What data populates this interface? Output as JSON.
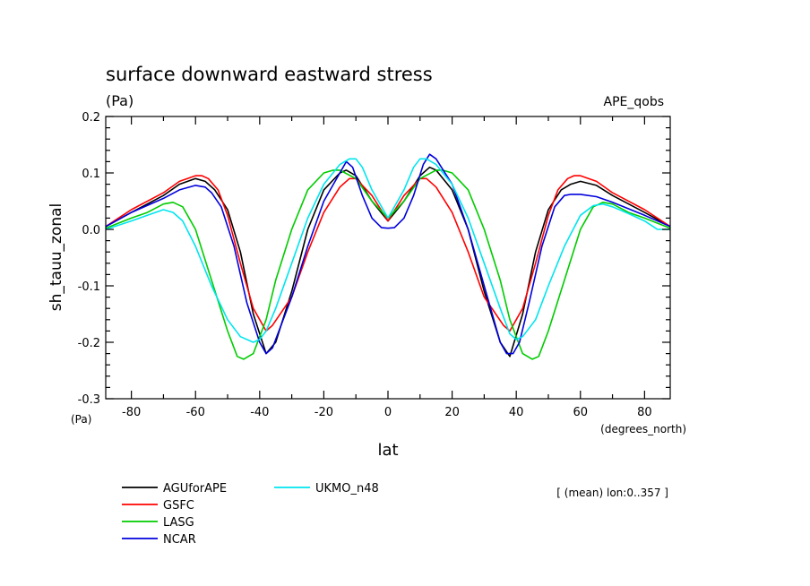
{
  "chart_data": {
    "type": "line",
    "title": "surface downward eastward stress",
    "units_label": "(Pa)",
    "experiment_label": "APE_qobs",
    "xlabel": "lat",
    "ylabel": "sh_tauu_zonal",
    "x_units_label": "(degrees_north)",
    "y_units_label": "(Pa)",
    "annotation": "[ (mean) lon:0..357 ]",
    "xlim": [
      -88,
      88
    ],
    "ylim": [
      -0.3,
      0.2
    ],
    "grid": false,
    "legend_position": "bottom-left",
    "x_ticks": [
      -80,
      -60,
      -40,
      -20,
      0,
      20,
      40,
      60,
      80
    ],
    "y_ticks": [
      -0.3,
      -0.2,
      -0.1,
      0.0,
      0.1,
      0.2
    ],
    "x_tick_labels": [
      "-80",
      "-60",
      "-40",
      "-20",
      "0",
      "20",
      "40",
      "60",
      "80"
    ],
    "y_tick_labels": [
      "-0.3",
      "-0.2",
      "-0.1",
      "0.0",
      "0.1",
      "0.2"
    ],
    "series": [
      {
        "name": "AGUforAPE",
        "color": "#000000",
        "x": [
          -88,
          -80,
          -70,
          -65,
          -60,
          -57,
          -54,
          -50,
          -46,
          -42,
          -38,
          -35,
          -30,
          -25,
          -20,
          -15,
          -13,
          -10,
          -5,
          0,
          5,
          10,
          13,
          15,
          20,
          25,
          30,
          35,
          38,
          42,
          46,
          50,
          54,
          57,
          60,
          65,
          70,
          80,
          88
        ],
        "y": [
          0.005,
          0.03,
          0.06,
          0.08,
          0.09,
          0.085,
          0.07,
          0.035,
          -0.04,
          -0.15,
          -0.22,
          -0.2,
          -0.11,
          0.0,
          0.07,
          0.1,
          0.105,
          0.095,
          0.05,
          0.015,
          0.05,
          0.095,
          0.11,
          0.105,
          0.07,
          0.0,
          -0.11,
          -0.2,
          -0.225,
          -0.15,
          -0.04,
          0.035,
          0.07,
          0.08,
          0.085,
          0.078,
          0.06,
          0.03,
          0.005
        ]
      },
      {
        "name": "GSFC",
        "color": "#ff0000",
        "x": [
          -88,
          -80,
          -70,
          -65,
          -60,
          -58,
          -56,
          -53,
          -50,
          -46,
          -42,
          -38,
          -36,
          -30,
          -25,
          -20,
          -15,
          -12,
          -10,
          -5,
          0,
          5,
          10,
          12,
          15,
          20,
          25,
          30,
          36,
          38,
          42,
          46,
          50,
          53,
          56,
          58,
          60,
          65,
          70,
          80,
          88
        ],
        "y": [
          0.005,
          0.035,
          0.065,
          0.085,
          0.095,
          0.095,
          0.09,
          0.07,
          0.025,
          -0.06,
          -0.14,
          -0.18,
          -0.17,
          -0.12,
          -0.04,
          0.03,
          0.075,
          0.09,
          0.09,
          0.06,
          0.015,
          0.06,
          0.09,
          0.09,
          0.075,
          0.03,
          -0.04,
          -0.12,
          -0.17,
          -0.18,
          -0.14,
          -0.06,
          0.025,
          0.07,
          0.09,
          0.095,
          0.095,
          0.085,
          0.065,
          0.035,
          0.005
        ]
      },
      {
        "name": "LASG",
        "color": "#00cc00",
        "x": [
          -88,
          -80,
          -75,
          -70,
          -67,
          -64,
          -60,
          -55,
          -50,
          -47,
          -45,
          -42,
          -38,
          -35,
          -30,
          -25,
          -20,
          -17,
          -15,
          -10,
          -5,
          0,
          5,
          10,
          15,
          17,
          20,
          25,
          30,
          35,
          38,
          42,
          45,
          47,
          50,
          55,
          60,
          64,
          67,
          70,
          75,
          80,
          88
        ],
        "y": [
          0.002,
          0.02,
          0.03,
          0.045,
          0.048,
          0.04,
          0.0,
          -0.09,
          -0.18,
          -0.225,
          -0.23,
          -0.22,
          -0.16,
          -0.09,
          0.0,
          0.07,
          0.1,
          0.105,
          0.105,
          0.09,
          0.05,
          0.02,
          0.05,
          0.09,
          0.105,
          0.105,
          0.1,
          0.07,
          0.0,
          -0.09,
          -0.16,
          -0.22,
          -0.23,
          -0.225,
          -0.18,
          -0.09,
          0.0,
          0.04,
          0.048,
          0.045,
          0.03,
          0.02,
          0.002
        ]
      },
      {
        "name": "NCAR",
        "color": "#0000dd",
        "x": [
          -88,
          -80,
          -70,
          -65,
          -60,
          -57,
          -55,
          -52,
          -48,
          -44,
          -40,
          -38,
          -36,
          -30,
          -25,
          -20,
          -15,
          -13,
          -11,
          -8,
          -5,
          -2,
          0,
          2,
          5,
          8,
          11,
          13,
          15,
          20,
          25,
          30,
          35,
          37,
          39,
          41,
          44,
          48,
          52,
          55,
          57,
          60,
          65,
          70,
          80,
          88
        ],
        "y": [
          0.005,
          0.03,
          0.055,
          0.07,
          0.078,
          0.075,
          0.065,
          0.04,
          -0.03,
          -0.13,
          -0.2,
          -0.22,
          -0.21,
          -0.12,
          -0.03,
          0.05,
          0.1,
          0.12,
          0.11,
          0.06,
          0.02,
          0.003,
          0.002,
          0.003,
          0.02,
          0.06,
          0.115,
          0.133,
          0.125,
          0.08,
          0.0,
          -0.1,
          -0.2,
          -0.22,
          -0.22,
          -0.2,
          -0.13,
          -0.03,
          0.04,
          0.06,
          0.062,
          0.062,
          0.058,
          0.048,
          0.025,
          0.005
        ]
      },
      {
        "name": "UKMO_n48",
        "color": "#00e5ee",
        "x": [
          -88,
          -80,
          -75,
          -70,
          -67,
          -64,
          -60,
          -55,
          -50,
          -46,
          -42,
          -40,
          -38,
          -35,
          -30,
          -25,
          -20,
          -15,
          -12,
          -10,
          -8,
          -5,
          0,
          5,
          8,
          10,
          12,
          15,
          20,
          25,
          30,
          35,
          38,
          40,
          42,
          46,
          50,
          55,
          60,
          64,
          67,
          70,
          75,
          80,
          84,
          88
        ],
        "y": [
          0.0,
          0.015,
          0.025,
          0.035,
          0.03,
          0.015,
          -0.03,
          -0.1,
          -0.16,
          -0.19,
          -0.2,
          -0.195,
          -0.18,
          -0.14,
          -0.06,
          0.02,
          0.08,
          0.115,
          0.125,
          0.125,
          0.11,
          0.07,
          0.02,
          0.07,
          0.11,
          0.125,
          0.125,
          0.115,
          0.08,
          0.02,
          -0.06,
          -0.14,
          -0.185,
          -0.195,
          -0.19,
          -0.16,
          -0.1,
          -0.03,
          0.025,
          0.042,
          0.045,
          0.04,
          0.028,
          0.015,
          0.0,
          0.0
        ]
      }
    ]
  }
}
